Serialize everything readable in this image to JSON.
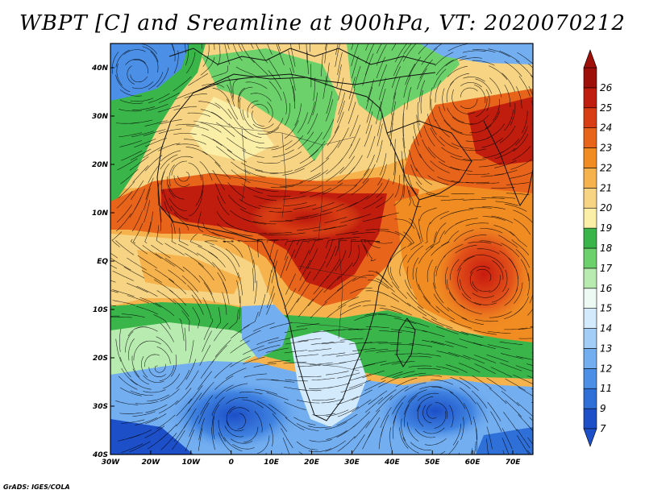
{
  "title": "WBPT [C] and Sreamline at 900hPa, VT: 2020070212",
  "credit": "GrADS: IGES/COLA",
  "map": {
    "lon_range": [
      -30,
      75
    ],
    "lat_range": [
      -40,
      45
    ],
    "lat_ticks": [
      {
        "value": 40,
        "label": "40N"
      },
      {
        "value": 30,
        "label": "30N"
      },
      {
        "value": 20,
        "label": "20N"
      },
      {
        "value": 10,
        "label": "10N"
      },
      {
        "value": 0,
        "label": "EQ"
      },
      {
        "value": -10,
        "label": "10S"
      },
      {
        "value": -20,
        "label": "20S"
      },
      {
        "value": -30,
        "label": "30S"
      },
      {
        "value": -40,
        "label": "40S"
      }
    ],
    "lon_ticks": [
      {
        "value": -30,
        "label": "30W"
      },
      {
        "value": -20,
        "label": "20W"
      },
      {
        "value": -10,
        "label": "10W"
      },
      {
        "value": 0,
        "label": "0"
      },
      {
        "value": 10,
        "label": "10E"
      },
      {
        "value": 20,
        "label": "20E"
      },
      {
        "value": 30,
        "label": "30E"
      },
      {
        "value": 40,
        "label": "40E"
      },
      {
        "value": 50,
        "label": "50E"
      },
      {
        "value": 60,
        "label": "60E"
      },
      {
        "value": 70,
        "label": "70E"
      }
    ]
  },
  "colorbar": {
    "levels": [
      {
        "label": "7",
        "color": "#1c4fc8"
      },
      {
        "label": "9",
        "color": "#2f6fd8"
      },
      {
        "label": "11",
        "color": "#4b8fe6"
      },
      {
        "label": "12",
        "color": "#73aef0"
      },
      {
        "label": "13",
        "color": "#a2cdf6"
      },
      {
        "label": "14",
        "color": "#d2eafb"
      },
      {
        "label": "15",
        "color": "#edfaf4"
      },
      {
        "label": "16",
        "color": "#b8ebb0"
      },
      {
        "label": "17",
        "color": "#6cd16a"
      },
      {
        "label": "18",
        "color": "#3ab54a"
      },
      {
        "label": "19",
        "color": "#fbeea6"
      },
      {
        "label": "20",
        "color": "#f7d483"
      },
      {
        "label": "21",
        "color": "#f6b24c"
      },
      {
        "label": "22",
        "color": "#f08c22"
      },
      {
        "label": "23",
        "color": "#e8641a"
      },
      {
        "label": "24",
        "color": "#d93d13"
      },
      {
        "label": "25",
        "color": "#c01d0e"
      },
      {
        "label": "26",
        "color": "#9e0f0a"
      }
    ]
  }
}
